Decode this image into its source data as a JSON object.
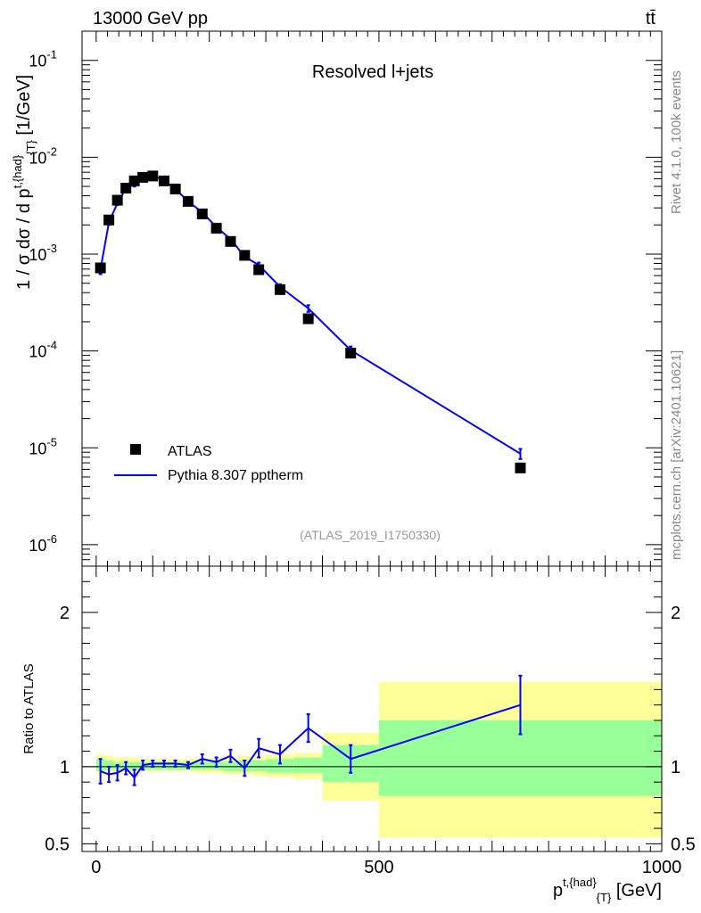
{
  "header": {
    "energy_label": "13000 GeV pp",
    "process_label": "tt̄"
  },
  "side_labels": {
    "rivet": "Rivet 4.1.0,  100k events",
    "mcplots": "mcplots.cern.ch [arXiv:2401.10621]"
  },
  "chart_data": {
    "type": "line",
    "title": "Resolved l+jets",
    "analysis_id": "(ATLAS_2019_I1750330)",
    "top_panel": {
      "ylabel": "1 / σ dσ / d p^{t,{had}}_{T} [1/GeV]",
      "yscale": "log",
      "ylim": [
        6e-07,
        0.2
      ],
      "y_tick_labels": [
        "10^{-6}",
        "10^{-5}",
        "10^{-4}",
        "10^{-3}",
        "10^{-2}",
        "10^{-1}"
      ]
    },
    "x": [
      7.5,
      22.5,
      37.5,
      52.5,
      67.5,
      82.5,
      100,
      120,
      140,
      162.5,
      187.5,
      212.5,
      237.5,
      262.5,
      287.5,
      325,
      375,
      450,
      750
    ],
    "xlim": [
      -25,
      1000
    ],
    "xlabel": "p^{t,{had}}_{T} [GeV]",
    "x_tick_labels": [
      "0",
      "500",
      "1000"
    ],
    "series": [
      {
        "name": "ATLAS",
        "style": "square markers",
        "values": [
          0.00072,
          0.00225,
          0.0036,
          0.0048,
          0.0057,
          0.0062,
          0.0064,
          0.0057,
          0.0047,
          0.0035,
          0.0026,
          0.00185,
          0.00135,
          0.00097,
          0.00069,
          0.00043,
          0.000215,
          9.5e-05,
          6.2e-06
        ]
      },
      {
        "name": "Pythia 8.307 pptherm",
        "style": "blue line",
        "values": [
          0.00069,
          0.00213,
          0.00335,
          0.00475,
          0.00525,
          0.006,
          0.0065,
          0.0058,
          0.0047,
          0.0035,
          0.0027,
          0.0019,
          0.00143,
          0.00094,
          0.00077,
          0.00046,
          0.000275,
          0.000102,
          8.7e-06
        ],
        "rel_err": [
          0.1,
          0.06,
          0.04,
          0.04,
          0.05,
          0.03,
          0.02,
          0.02,
          0.02,
          0.02,
          0.03,
          0.03,
          0.04,
          0.05,
          0.06,
          0.06,
          0.08,
          0.09,
          0.12
        ]
      }
    ],
    "ratio_panel": {
      "ylabel": "Ratio to ATLAS",
      "ylim": [
        0.45,
        2.3
      ],
      "y_tick_labels": [
        "0.5",
        "1",
        "2"
      ],
      "values": [
        0.97,
        0.95,
        0.96,
        0.99,
        0.93,
        1.01,
        1.02,
        1.02,
        1.02,
        1.01,
        1.05,
        1.03,
        1.07,
        0.99,
        1.12,
        1.08,
        1.25,
        1.05,
        1.4
      ],
      "errors": [
        0.08,
        0.05,
        0.05,
        0.04,
        0.05,
        0.03,
        0.02,
        0.02,
        0.02,
        0.02,
        0.03,
        0.03,
        0.04,
        0.05,
        0.06,
        0.06,
        0.09,
        0.09,
        0.19
      ],
      "bands": {
        "edges": [
          0,
          15,
          30,
          45,
          60,
          75,
          90,
          110,
          130,
          150,
          175,
          200,
          225,
          250,
          275,
          300,
          350,
          400,
          500,
          1000
        ],
        "stat_sys_low": [
          0.94,
          0.96,
          0.96,
          0.96,
          0.97,
          0.97,
          0.97,
          0.97,
          0.97,
          0.97,
          0.96,
          0.96,
          0.95,
          0.95,
          0.94,
          0.93,
          0.92,
          0.78,
          0.54
        ],
        "stat_sys_high": [
          1.08,
          1.07,
          1.06,
          1.06,
          1.06,
          1.05,
          1.05,
          1.05,
          1.05,
          1.05,
          1.05,
          1.06,
          1.06,
          1.07,
          1.07,
          1.08,
          1.09,
          1.22,
          1.55
        ],
        "stat_low": [
          0.97,
          0.98,
          0.98,
          0.98,
          0.98,
          0.98,
          0.98,
          0.98,
          0.98,
          0.98,
          0.98,
          0.98,
          0.97,
          0.97,
          0.97,
          0.96,
          0.96,
          0.9,
          0.81
        ],
        "stat_high": [
          1.05,
          1.04,
          1.03,
          1.03,
          1.03,
          1.03,
          1.03,
          1.03,
          1.03,
          1.03,
          1.03,
          1.03,
          1.03,
          1.04,
          1.04,
          1.05,
          1.06,
          1.14,
          1.3
        ],
        "colors": {
          "total": "#ffff99",
          "stat": "#99ff99"
        }
      }
    },
    "colors": {
      "mc": "#0000ff",
      "data": "#000000"
    }
  }
}
